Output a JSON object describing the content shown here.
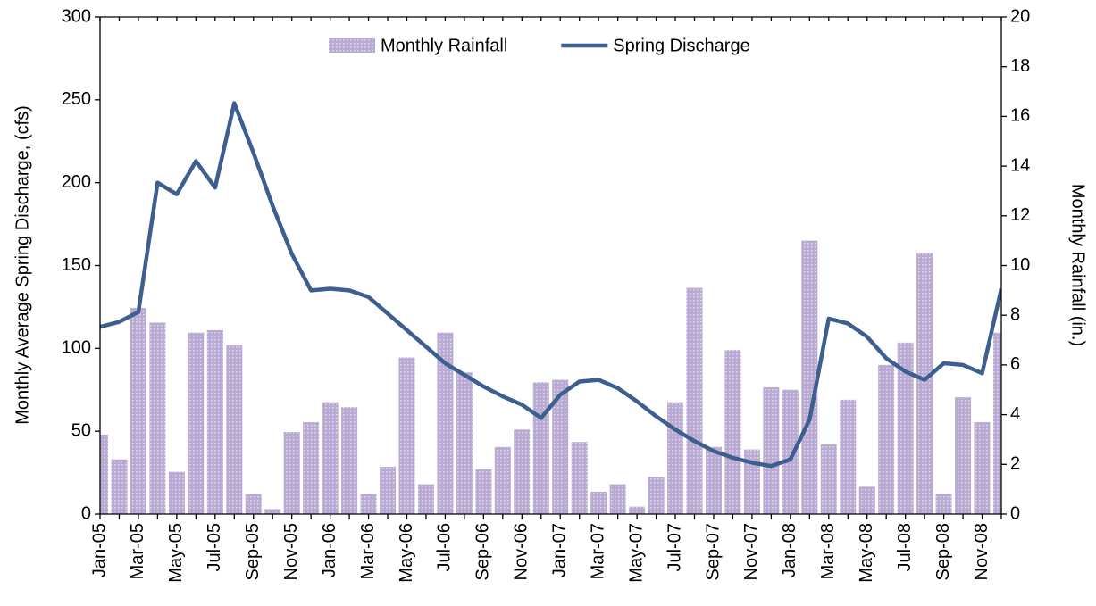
{
  "chart_data": {
    "type": "combo",
    "categories": [
      "Jan-05",
      null,
      "Mar-05",
      null,
      "May-05",
      null,
      "Jul-05",
      null,
      "Sep-05",
      null,
      "Nov-05",
      null,
      "Jan-06",
      null,
      "Mar-06",
      null,
      "May-06",
      null,
      "Jul-06",
      null,
      "Sep-06",
      null,
      "Nov-06",
      null,
      "Jan-07",
      null,
      "Mar-07",
      null,
      "May-07",
      null,
      "Jul-07",
      null,
      "Sep-07",
      null,
      "Nov-07",
      null,
      "Jan-08",
      null,
      "Mar-08",
      null,
      "May-08",
      null,
      "Jul-08",
      null,
      "Sep-08",
      null,
      "Nov-08",
      null
    ],
    "series": [
      {
        "name": "Monthly Rainfall",
        "type": "bar",
        "axis": "y2",
        "color": "#b8aad2",
        "values": [
          3.2,
          2.2,
          8.3,
          7.7,
          1.7,
          7.3,
          7.4,
          6.8,
          0.8,
          0.2,
          3.3,
          3.7,
          4.5,
          4.3,
          0.8,
          1.9,
          6.3,
          1.2,
          7.3,
          5.7,
          1.8,
          2.7,
          3.4,
          5.3,
          5.4,
          2.9,
          0.9,
          1.2,
          0.3,
          1.5,
          4.5,
          9.1,
          2.7,
          6.6,
          2.6,
          5.1,
          5.0,
          11.0,
          2.8,
          4.6,
          1.1,
          6.0,
          6.9,
          10.5,
          0.8,
          4.7,
          3.7,
          7.3
        ]
      },
      {
        "name": "Spring Discharge",
        "type": "line",
        "color": "#3c5f8f",
        "values": [
          113,
          116,
          122,
          200,
          193,
          213,
          197,
          248,
          218,
          186,
          157,
          135,
          136,
          135,
          131,
          121,
          111,
          101,
          91,
          84,
          77,
          71,
          66,
          58,
          72,
          80,
          81,
          76,
          68,
          59,
          51,
          44,
          38,
          34,
          31,
          29,
          33,
          57,
          118,
          115,
          107,
          94,
          86,
          81,
          91,
          90,
          85,
          136
        ]
      }
    ],
    "y_label": "Monthly Average Spring Discharge, (cfs)",
    "y2_label": "Monthly Rainfall (in.)",
    "ylim": [
      0,
      300
    ],
    "yticks": [
      0,
      50,
      100,
      150,
      200,
      250,
      300
    ],
    "y2lim": [
      0,
      20
    ],
    "y2ticks": [
      0,
      2,
      4,
      6,
      8,
      10,
      12,
      14,
      16,
      18,
      20
    ],
    "legend": "top"
  }
}
